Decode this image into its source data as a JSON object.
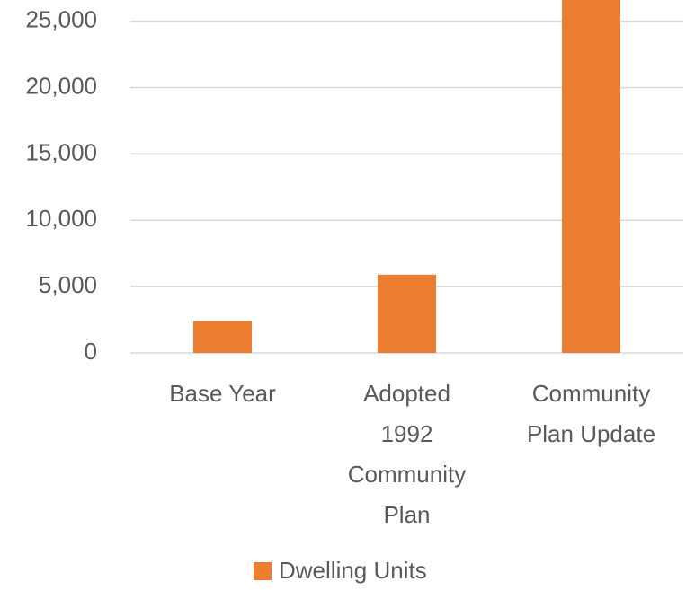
{
  "chart_data": {
    "type": "bar",
    "categories": [
      "Base Year",
      "Adopted 1992 Community Plan",
      "Community Plan Update"
    ],
    "series": [
      {
        "name": "Dwelling Units",
        "color": "#ed7d31",
        "values": [
          2400,
          5900,
          27000
        ]
      }
    ],
    "ylim": [
      0,
      26600
    ],
    "yticks": [
      0,
      {
        "value": 5000,
        "label": "5,000"
      },
      {
        "value": 10000,
        "label": "10,000"
      },
      {
        "value": 15000,
        "label": "15,000"
      },
      {
        "value": 20000,
        "label": "20,000"
      },
      {
        "value": 25000,
        "label": "25,000"
      }
    ],
    "grid": true,
    "legend": "bottom"
  }
}
